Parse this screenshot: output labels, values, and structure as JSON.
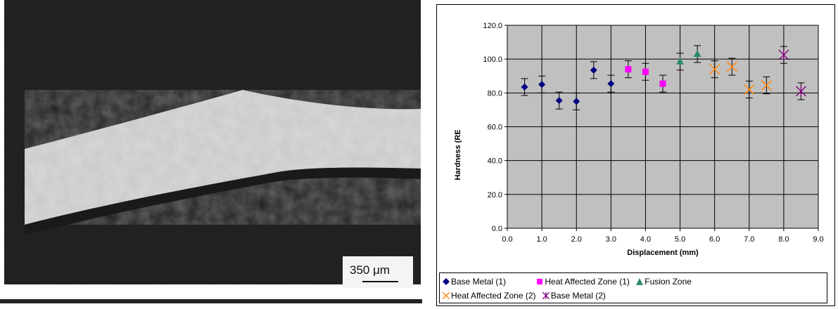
{
  "micrograph": {
    "scale_bar_label": "350 μm"
  },
  "chart_data": {
    "type": "scatter",
    "xlabel": "Displacement (mm)",
    "ylabel": "Hardness (RE",
    "xlim": [
      0,
      9
    ],
    "ylim": [
      0,
      120
    ],
    "x_ticks": [
      "0.0",
      "1.0",
      "2.0",
      "3.0",
      "4.0",
      "5.0",
      "6.0",
      "7.0",
      "8.0",
      "9.0"
    ],
    "y_ticks": [
      "0.0",
      "20.0",
      "40.0",
      "60.0",
      "80.0",
      "100.0",
      "120.0"
    ],
    "grid": true,
    "legend_position": "bottom",
    "error_bars": true,
    "error": 5,
    "series": [
      {
        "name": "Base Metal (1)",
        "marker": "diamond",
        "color": "#000080",
        "x": [
          0.5,
          1.0,
          1.5,
          2.0,
          2.5,
          3.0
        ],
        "y": [
          83.5,
          85.0,
          75.5,
          75.0,
          93.5,
          85.5
        ]
      },
      {
        "name": "Heat Affected Zone (1)",
        "marker": "square",
        "color": "#ff00ff",
        "x": [
          3.5,
          4.0,
          4.5
        ],
        "y": [
          94.0,
          92.5,
          85.5
        ]
      },
      {
        "name": "Fusion Zone",
        "marker": "triangle",
        "color": "#2e8b72",
        "x": [
          5.0,
          5.5
        ],
        "y": [
          98.5,
          103.0
        ]
      },
      {
        "name": "Heat Affected Zone (2)",
        "marker": "x",
        "color": "#ff8c1a",
        "x": [
          6.0,
          6.5,
          7.0,
          7.5
        ],
        "y": [
          94.0,
          95.5,
          82.0,
          84.5
        ]
      },
      {
        "name": "Base Metal (2)",
        "marker": "star",
        "color": "#800080",
        "x": [
          8.0,
          8.5
        ],
        "y": [
          102.5,
          81.0
        ]
      }
    ]
  }
}
